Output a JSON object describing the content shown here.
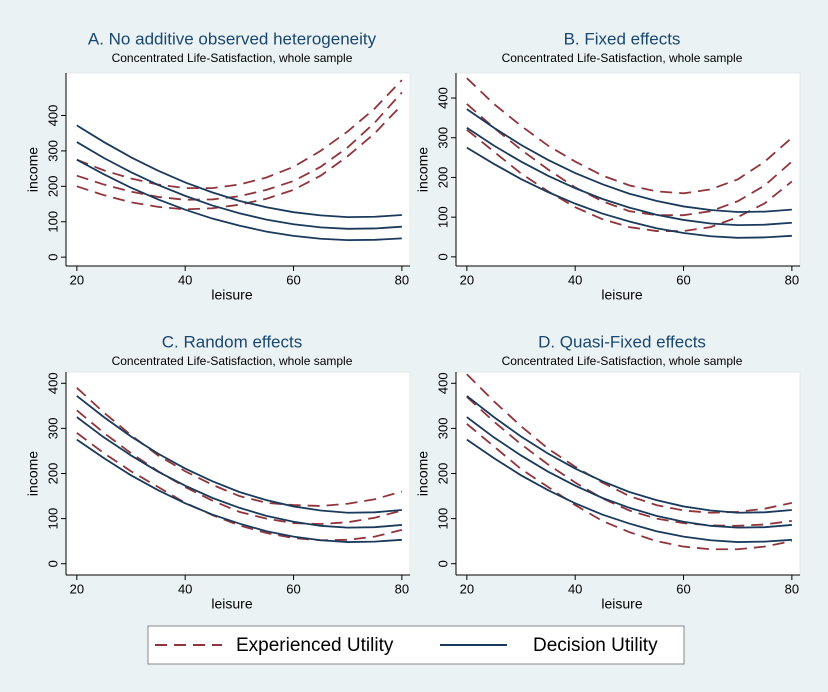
{
  "chart_data": [
    {
      "type": "line",
      "title": "A. No additive observed heterogeneity",
      "subtitle": "Concentrated Life-Satisfaction, whole sample",
      "x_label": "leisure",
      "y_label": "income",
      "x": [
        20,
        25,
        30,
        35,
        40,
        45,
        50,
        55,
        60,
        65,
        70,
        75,
        80
      ],
      "xlim": [
        18,
        81.5
      ],
      "xticks": [
        20,
        40,
        60,
        80
      ],
      "ylim": [
        -25,
        520
      ],
      "yticks": [
        0,
        100,
        200,
        300,
        400
      ],
      "series": [
        {
          "name": "Experienced Utility",
          "color": "#90353b",
          "style": "dashed",
          "values": [
            275,
            245,
            222,
            205,
            195,
            195,
            205,
            225,
            255,
            300,
            355,
            420,
            500
          ]
        },
        {
          "name": "Experienced Utility",
          "color": "#90353b",
          "style": "dashed",
          "values": [
            230,
            205,
            185,
            170,
            162,
            163,
            172,
            190,
            215,
            255,
            310,
            380,
            465
          ]
        },
        {
          "name": "Experienced Utility",
          "color": "#90353b",
          "style": "dashed",
          "values": [
            200,
            175,
            155,
            142,
            135,
            138,
            148,
            165,
            190,
            230,
            285,
            350,
            430
          ]
        },
        {
          "name": "Decision Utility",
          "color": "#1a3a5c",
          "style": "solid",
          "values": [
            372,
            325,
            282,
            244,
            211,
            183,
            159,
            141,
            127,
            118,
            113,
            114,
            119
          ]
        },
        {
          "name": "Decision Utility",
          "color": "#1a3a5c",
          "style": "solid",
          "values": [
            325,
            280,
            240,
            204,
            173,
            146,
            124,
            106,
            93,
            84,
            80,
            81,
            86
          ]
        },
        {
          "name": "Decision Utility",
          "color": "#1a3a5c",
          "style": "solid",
          "values": [
            275,
            234,
            196,
            163,
            134,
            109,
            89,
            72,
            60,
            52,
            48,
            49,
            53
          ]
        }
      ]
    },
    {
      "type": "line",
      "title": "B. Fixed effects",
      "subtitle": "Concentrated Life-Satisfaction, whole sample",
      "x_label": "leisure",
      "y_label": "income",
      "x": [
        20,
        25,
        30,
        35,
        40,
        45,
        50,
        55,
        60,
        65,
        70,
        75,
        80
      ],
      "xlim": [
        18,
        81.5
      ],
      "xticks": [
        20,
        40,
        60,
        80
      ],
      "ylim": [
        -23,
        463
      ],
      "yticks": [
        0,
        100,
        200,
        300,
        400
      ],
      "series": [
        {
          "name": "Experienced Utility",
          "color": "#90353b",
          "style": "dashed",
          "values": [
            450,
            385,
            330,
            280,
            240,
            205,
            180,
            165,
            160,
            170,
            195,
            240,
            300
          ]
        },
        {
          "name": "Experienced Utility",
          "color": "#90353b",
          "style": "dashed",
          "values": [
            385,
            325,
            270,
            220,
            175,
            140,
            115,
            105,
            105,
            115,
            140,
            180,
            240
          ]
        },
        {
          "name": "Experienced Utility",
          "color": "#90353b",
          "style": "dashed",
          "values": [
            320,
            265,
            210,
            165,
            125,
            95,
            75,
            65,
            65,
            75,
            100,
            135,
            190
          ]
        },
        {
          "name": "Decision Utility",
          "color": "#1a3a5c",
          "style": "solid",
          "values": [
            372,
            325,
            282,
            244,
            211,
            183,
            159,
            141,
            127,
            118,
            113,
            114,
            119
          ]
        },
        {
          "name": "Decision Utility",
          "color": "#1a3a5c",
          "style": "solid",
          "values": [
            325,
            280,
            240,
            204,
            173,
            146,
            124,
            106,
            93,
            84,
            80,
            81,
            86
          ]
        },
        {
          "name": "Decision Utility",
          "color": "#1a3a5c",
          "style": "solid",
          "values": [
            275,
            234,
            196,
            163,
            134,
            109,
            89,
            72,
            60,
            52,
            48,
            49,
            53
          ]
        }
      ]
    },
    {
      "type": "line",
      "title": "C. Random effects",
      "subtitle": "Concentrated Life-Satisfaction, whole sample",
      "x_label": "leisure",
      "y_label": "income",
      "x": [
        20,
        25,
        30,
        35,
        40,
        45,
        50,
        55,
        60,
        65,
        70,
        75,
        80
      ],
      "xlim": [
        18,
        81.5
      ],
      "xticks": [
        20,
        40,
        60,
        80
      ],
      "ylim": [
        -25,
        425
      ],
      "yticks": [
        0,
        100,
        200,
        300,
        400
      ],
      "series": [
        {
          "name": "Experienced Utility",
          "color": "#90353b",
          "style": "dashed",
          "values": [
            390,
            335,
            285,
            240,
            205,
            175,
            150,
            135,
            130,
            128,
            133,
            143,
            160
          ]
        },
        {
          "name": "Experienced Utility",
          "color": "#90353b",
          "style": "dashed",
          "values": [
            340,
            290,
            245,
            205,
            170,
            140,
            115,
            100,
            90,
            88,
            92,
            102,
            118
          ]
        },
        {
          "name": "Experienced Utility",
          "color": "#90353b",
          "style": "dashed",
          "values": [
            290,
            245,
            205,
            170,
            135,
            108,
            85,
            68,
            57,
            52,
            53,
            60,
            75
          ]
        },
        {
          "name": "Decision Utility",
          "color": "#1a3a5c",
          "style": "solid",
          "values": [
            372,
            325,
            282,
            244,
            211,
            183,
            159,
            141,
            127,
            118,
            113,
            114,
            119
          ]
        },
        {
          "name": "Decision Utility",
          "color": "#1a3a5c",
          "style": "solid",
          "values": [
            325,
            280,
            240,
            204,
            173,
            146,
            124,
            106,
            93,
            84,
            80,
            81,
            86
          ]
        },
        {
          "name": "Decision Utility",
          "color": "#1a3a5c",
          "style": "solid",
          "values": [
            275,
            234,
            196,
            163,
            134,
            109,
            89,
            72,
            60,
            52,
            48,
            49,
            53
          ]
        }
      ]
    },
    {
      "type": "line",
      "title": "D. Quasi-Fixed effects",
      "subtitle": "Concentrated Life-Satisfaction, whole sample",
      "x_label": "leisure",
      "y_label": "income",
      "x": [
        20,
        25,
        30,
        35,
        40,
        45,
        50,
        55,
        60,
        65,
        70,
        75,
        80
      ],
      "xlim": [
        18,
        81.5
      ],
      "xticks": [
        20,
        40,
        60,
        80
      ],
      "ylim": [
        -25,
        425
      ],
      "yticks": [
        0,
        100,
        200,
        300,
        400
      ],
      "series": [
        {
          "name": "Experienced Utility",
          "color": "#90353b",
          "style": "dashed",
          "values": [
            420,
            360,
            305,
            255,
            215,
            180,
            150,
            130,
            118,
            113,
            115,
            122,
            135
          ]
        },
        {
          "name": "Experienced Utility",
          "color": "#90353b",
          "style": "dashed",
          "values": [
            370,
            315,
            265,
            220,
            180,
            145,
            118,
            100,
            90,
            85,
            84,
            87,
            95
          ]
        },
        {
          "name": "Experienced Utility",
          "color": "#90353b",
          "style": "dashed",
          "values": [
            310,
            260,
            210,
            170,
            130,
            95,
            70,
            50,
            38,
            32,
            32,
            38,
            50
          ]
        },
        {
          "name": "Decision Utility",
          "color": "#1a3a5c",
          "style": "solid",
          "values": [
            372,
            325,
            282,
            244,
            211,
            183,
            159,
            141,
            127,
            118,
            113,
            114,
            119
          ]
        },
        {
          "name": "Decision Utility",
          "color": "#1a3a5c",
          "style": "solid",
          "values": [
            325,
            280,
            240,
            204,
            173,
            146,
            124,
            106,
            93,
            84,
            80,
            81,
            86
          ]
        },
        {
          "name": "Decision Utility",
          "color": "#1a3a5c",
          "style": "solid",
          "values": [
            275,
            234,
            196,
            163,
            134,
            109,
            89,
            72,
            60,
            52,
            48,
            49,
            53
          ]
        }
      ]
    }
  ]
}
